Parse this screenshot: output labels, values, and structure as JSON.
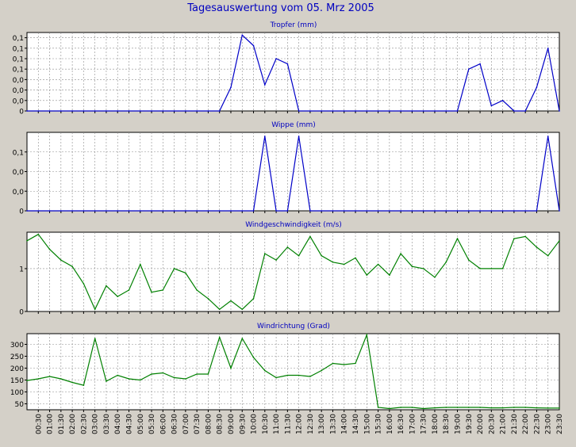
{
  "window": {
    "title": "Tagesauswertung vom 05. Mrz 2005"
  },
  "colors": {
    "background": "#d4d0c8",
    "plot_background": "#ffffff",
    "grid": "#8c8c8c",
    "title": "#0000c0",
    "blue_series": "#0000c8",
    "green_series": "#008000"
  },
  "chart_data": [
    {
      "type": "line",
      "title": "Tropfer (mm)",
      "color": "#0000c8",
      "grid": true,
      "ylim": [
        0,
        0.15
      ],
      "y_ticks": [
        {
          "v": 0,
          "label": "0"
        },
        {
          "v": 0.02,
          "label": "0,0"
        },
        {
          "v": 0.04,
          "label": "0,0"
        },
        {
          "v": 0.06,
          "label": "0,0"
        },
        {
          "v": 0.08,
          "label": "0,1"
        },
        {
          "v": 0.1,
          "label": "0,1"
        },
        {
          "v": 0.12,
          "label": "0,1"
        },
        {
          "v": 0.14,
          "label": "0,1"
        }
      ],
      "series": [
        {
          "values": [
            0,
            0,
            0,
            0,
            0,
            0,
            0,
            0,
            0,
            0,
            0,
            0,
            0,
            0,
            0,
            0,
            0,
            0,
            0.045,
            0.145,
            0.125,
            0.05,
            0.1,
            0.09,
            0,
            0,
            0,
            0,
            0,
            0,
            0,
            0,
            0,
            0,
            0,
            0,
            0,
            0,
            0,
            0.08,
            0.09,
            0.01,
            0.02,
            0,
            0,
            0.045,
            0.12,
            0
          ]
        }
      ]
    },
    {
      "type": "line",
      "title": "Wippe (mm)",
      "color": "#0000c8",
      "grid": true,
      "ylim": [
        0,
        0.2
      ],
      "y_ticks": [
        {
          "v": 0,
          "label": "0"
        },
        {
          "v": 0.05,
          "label": "0,0"
        },
        {
          "v": 0.1,
          "label": "0,0"
        },
        {
          "v": 0.15,
          "label": "0,1"
        }
      ],
      "series": [
        {
          "values": [
            0,
            0,
            0,
            0,
            0,
            0,
            0,
            0,
            0,
            0,
            0,
            0,
            0,
            0,
            0,
            0,
            0,
            0,
            0,
            0,
            0,
            0.19,
            0,
            0,
            0.19,
            0,
            0,
            0,
            0,
            0,
            0,
            0,
            0,
            0,
            0,
            0,
            0,
            0,
            0,
            0,
            0,
            0,
            0,
            0,
            0,
            0,
            0.19,
            0
          ]
        }
      ]
    },
    {
      "type": "line",
      "title": "Windgeschwindigkeit (m/s)",
      "color": "#008000",
      "grid": true,
      "ylim": [
        0,
        1.85
      ],
      "y_ticks": [
        {
          "v": 0,
          "label": "0"
        },
        {
          "v": 1,
          "label": "1"
        }
      ],
      "series": [
        {
          "values": [
            1.65,
            1.8,
            1.45,
            1.2,
            1.05,
            0.65,
            0.05,
            0.6,
            0.35,
            0.5,
            1.1,
            0.45,
            0.5,
            1.0,
            0.9,
            0.5,
            0.3,
            0.05,
            0.25,
            0.05,
            0.3,
            1.35,
            1.2,
            1.5,
            1.3,
            1.75,
            1.3,
            1.15,
            1.1,
            1.25,
            0.85,
            1.1,
            0.85,
            1.35,
            1.05,
            1.0,
            0.8,
            1.15,
            1.7,
            1.2,
            1.0,
            1.0,
            1.0,
            1.7,
            1.75,
            1.5,
            1.3,
            1.65
          ]
        }
      ]
    },
    {
      "type": "line",
      "title": "Windrichtung (Grad)",
      "color": "#008000",
      "grid": true,
      "ylim": [
        25,
        345
      ],
      "y_ticks": [
        {
          "v": 50,
          "label": "50"
        },
        {
          "v": 100,
          "label": "100"
        },
        {
          "v": 150,
          "label": "150"
        },
        {
          "v": 200,
          "label": "200"
        },
        {
          "v": 250,
          "label": "250"
        },
        {
          "v": 300,
          "label": "300"
        }
      ],
      "x_labels": [
        "00:30",
        "01:00",
        "01:30",
        "02:00",
        "02:30",
        "03:00",
        "03:30",
        "04:00",
        "04:30",
        "05:00",
        "05:30",
        "06:00",
        "06:30",
        "07:00",
        "07:30",
        "08:00",
        "08:30",
        "09:00",
        "09:30",
        "10:00",
        "10:30",
        "11:00",
        "11:30",
        "12:00",
        "12:30",
        "13:00",
        "13:30",
        "14:00",
        "14:30",
        "15:00",
        "15:30",
        "16:00",
        "16:30",
        "17:00",
        "17:30",
        "18:00",
        "18:30",
        "19:00",
        "19:30",
        "20:00",
        "20:30",
        "21:00",
        "21:30",
        "22:00",
        "22:30",
        "23:00",
        "23:30"
      ],
      "series": [
        {
          "values": [
            148,
            155,
            165,
            155,
            140,
            128,
            325,
            145,
            170,
            155,
            150,
            175,
            180,
            160,
            155,
            175,
            175,
            330,
            200,
            325,
            245,
            190,
            160,
            170,
            170,
            165,
            190,
            220,
            215,
            220,
            340,
            35,
            30,
            35,
            35,
            30,
            33,
            35,
            35,
            35,
            35,
            33,
            33,
            35,
            35,
            33,
            32,
            32
          ]
        }
      ]
    }
  ]
}
